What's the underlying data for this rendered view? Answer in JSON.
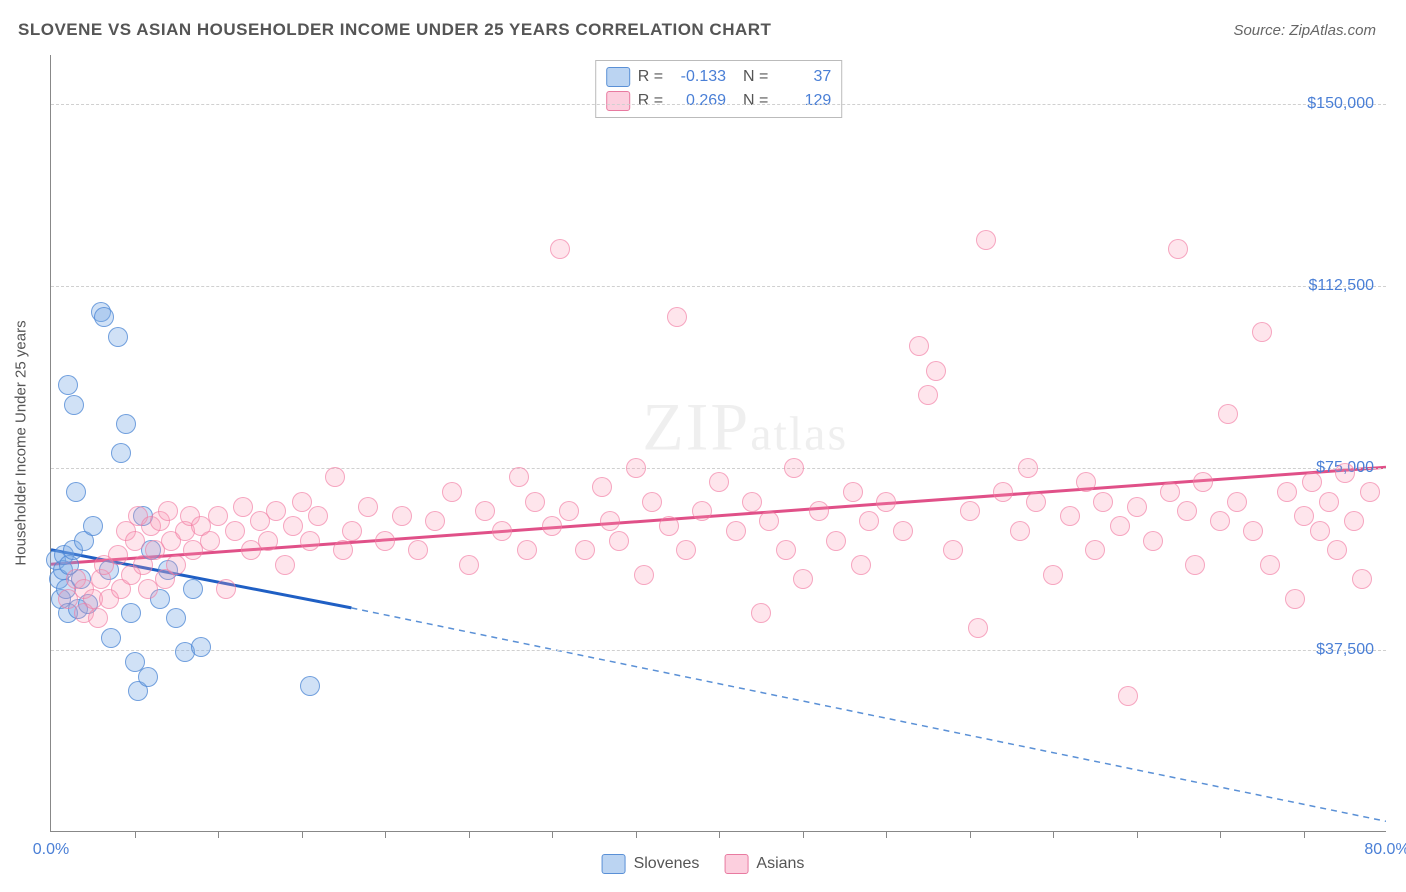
{
  "title": "SLOVENE VS ASIAN HOUSEHOLDER INCOME UNDER 25 YEARS CORRELATION CHART",
  "source": "Source: ZipAtlas.com",
  "y_axis_label": "Householder Income Under 25 years",
  "watermark": "ZIPatlas",
  "chart": {
    "type": "scatter",
    "background_color": "#ffffff",
    "grid_color": "#d0d0d0",
    "xlim": [
      0,
      80
    ],
    "ylim": [
      0,
      160000
    ],
    "x_ticks_minor": [
      5,
      10,
      15,
      20,
      25,
      30,
      35,
      40,
      45,
      50,
      55,
      60,
      65,
      70,
      75
    ],
    "x_tick_labels": [
      {
        "pos": 0,
        "label": "0.0%"
      },
      {
        "pos": 80,
        "label": "80.0%"
      }
    ],
    "y_gridlines": [
      37500,
      75000,
      112500,
      150000
    ],
    "y_tick_labels": [
      "$37,500",
      "$75,000",
      "$112,500",
      "$150,000"
    ],
    "marker_radius": 9,
    "series": [
      {
        "name": "Slovenes",
        "fill": "rgba(120,170,230,0.35)",
        "stroke": "#5a90d6",
        "R": "-0.133",
        "N": "37",
        "trend": {
          "x1": 0,
          "y1": 58000,
          "x2": 18,
          "y2": 46000,
          "color": "#1f5fc4",
          "width": 3,
          "dash": "none"
        },
        "trend_ext": {
          "x1": 18,
          "y1": 46000,
          "x2": 80,
          "y2": 2000,
          "color": "#5a90d6",
          "width": 1.5,
          "dash": "6 5"
        },
        "points": [
          [
            0.3,
            56000
          ],
          [
            0.5,
            52000
          ],
          [
            0.6,
            48000
          ],
          [
            0.7,
            54000
          ],
          [
            0.8,
            57000
          ],
          [
            0.9,
            50000
          ],
          [
            1.0,
            92000
          ],
          [
            1.0,
            45000
          ],
          [
            1.1,
            55000
          ],
          [
            1.3,
            58000
          ],
          [
            1.4,
            88000
          ],
          [
            1.5,
            70000
          ],
          [
            1.6,
            46000
          ],
          [
            1.8,
            52000
          ],
          [
            2.0,
            60000
          ],
          [
            2.2,
            47000
          ],
          [
            2.5,
            63000
          ],
          [
            3.0,
            107000
          ],
          [
            3.2,
            106000
          ],
          [
            3.5,
            54000
          ],
          [
            3.6,
            40000
          ],
          [
            4.0,
            102000
          ],
          [
            4.2,
            78000
          ],
          [
            4.5,
            84000
          ],
          [
            4.8,
            45000
          ],
          [
            5.0,
            35000
          ],
          [
            5.2,
            29000
          ],
          [
            5.5,
            65000
          ],
          [
            6.0,
            58000
          ],
          [
            6.5,
            48000
          ],
          [
            7.0,
            54000
          ],
          [
            7.5,
            44000
          ],
          [
            8.0,
            37000
          ],
          [
            8.5,
            50000
          ],
          [
            9.0,
            38000
          ],
          [
            15.5,
            30000
          ],
          [
            5.8,
            32000
          ]
        ]
      },
      {
        "name": "Asians",
        "fill": "rgba(250,150,180,0.25)",
        "stroke": "#e87aa0",
        "R": "0.269",
        "N": "129",
        "trend": {
          "x1": 0,
          "y1": 55000,
          "x2": 80,
          "y2": 75000,
          "color": "#e05088",
          "width": 3,
          "dash": "none"
        },
        "points": [
          [
            1,
            48000
          ],
          [
            1.5,
            52000
          ],
          [
            2,
            45000
          ],
          [
            2,
            50000
          ],
          [
            2.5,
            48000
          ],
          [
            2.8,
            44000
          ],
          [
            3,
            52000
          ],
          [
            3.2,
            55000
          ],
          [
            3.5,
            48000
          ],
          [
            4,
            57000
          ],
          [
            4.2,
            50000
          ],
          [
            4.5,
            62000
          ],
          [
            4.8,
            53000
          ],
          [
            5,
            60000
          ],
          [
            5.2,
            65000
          ],
          [
            5.5,
            55000
          ],
          [
            5.8,
            50000
          ],
          [
            6,
            63000
          ],
          [
            6.2,
            58000
          ],
          [
            6.5,
            64000
          ],
          [
            6.8,
            52000
          ],
          [
            7,
            66000
          ],
          [
            7.2,
            60000
          ],
          [
            7.5,
            55000
          ],
          [
            8,
            62000
          ],
          [
            8.3,
            65000
          ],
          [
            8.5,
            58000
          ],
          [
            9,
            63000
          ],
          [
            9.5,
            60000
          ],
          [
            10,
            65000
          ],
          [
            10.5,
            50000
          ],
          [
            11,
            62000
          ],
          [
            11.5,
            67000
          ],
          [
            12,
            58000
          ],
          [
            12.5,
            64000
          ],
          [
            13,
            60000
          ],
          [
            13.5,
            66000
          ],
          [
            14,
            55000
          ],
          [
            14.5,
            63000
          ],
          [
            15,
            68000
          ],
          [
            15.5,
            60000
          ],
          [
            16,
            65000
          ],
          [
            17,
            73000
          ],
          [
            17.5,
            58000
          ],
          [
            18,
            62000
          ],
          [
            19,
            67000
          ],
          [
            20,
            60000
          ],
          [
            21,
            65000
          ],
          [
            22,
            58000
          ],
          [
            23,
            64000
          ],
          [
            24,
            70000
          ],
          [
            25,
            55000
          ],
          [
            26,
            66000
          ],
          [
            27,
            62000
          ],
          [
            28,
            73000
          ],
          [
            28.5,
            58000
          ],
          [
            29,
            68000
          ],
          [
            30,
            63000
          ],
          [
            30.5,
            120000
          ],
          [
            31,
            66000
          ],
          [
            32,
            58000
          ],
          [
            33,
            71000
          ],
          [
            33.5,
            64000
          ],
          [
            34,
            60000
          ],
          [
            35,
            75000
          ],
          [
            35.5,
            53000
          ],
          [
            36,
            68000
          ],
          [
            37,
            63000
          ],
          [
            37.5,
            106000
          ],
          [
            38,
            58000
          ],
          [
            39,
            66000
          ],
          [
            40,
            72000
          ],
          [
            41,
            62000
          ],
          [
            42,
            68000
          ],
          [
            42.5,
            45000
          ],
          [
            43,
            64000
          ],
          [
            44,
            58000
          ],
          [
            44.5,
            75000
          ],
          [
            45,
            52000
          ],
          [
            46,
            66000
          ],
          [
            47,
            60000
          ],
          [
            48,
            70000
          ],
          [
            48.5,
            55000
          ],
          [
            49,
            64000
          ],
          [
            50,
            68000
          ],
          [
            51,
            62000
          ],
          [
            52,
            100000
          ],
          [
            52.5,
            90000
          ],
          [
            53,
            95000
          ],
          [
            54,
            58000
          ],
          [
            55,
            66000
          ],
          [
            55.5,
            42000
          ],
          [
            56,
            122000
          ],
          [
            57,
            70000
          ],
          [
            58,
            62000
          ],
          [
            58.5,
            75000
          ],
          [
            59,
            68000
          ],
          [
            60,
            53000
          ],
          [
            61,
            65000
          ],
          [
            62,
            72000
          ],
          [
            62.5,
            58000
          ],
          [
            63,
            68000
          ],
          [
            64,
            63000
          ],
          [
            64.5,
            28000
          ],
          [
            65,
            67000
          ],
          [
            66,
            60000
          ],
          [
            67,
            70000
          ],
          [
            67.5,
            120000
          ],
          [
            68,
            66000
          ],
          [
            68.5,
            55000
          ],
          [
            69,
            72000
          ],
          [
            70,
            64000
          ],
          [
            70.5,
            86000
          ],
          [
            71,
            68000
          ],
          [
            72,
            62000
          ],
          [
            72.5,
            103000
          ],
          [
            73,
            55000
          ],
          [
            74,
            70000
          ],
          [
            74.5,
            48000
          ],
          [
            75,
            65000
          ],
          [
            75.5,
            72000
          ],
          [
            76,
            62000
          ],
          [
            76.5,
            68000
          ],
          [
            77,
            58000
          ],
          [
            77.5,
            74000
          ],
          [
            78,
            64000
          ],
          [
            78.5,
            52000
          ],
          [
            79,
            70000
          ]
        ]
      }
    ]
  },
  "bottom_legend": [
    {
      "label": "Slovenes",
      "swatch": "blue"
    },
    {
      "label": "Asians",
      "swatch": "pink"
    }
  ]
}
